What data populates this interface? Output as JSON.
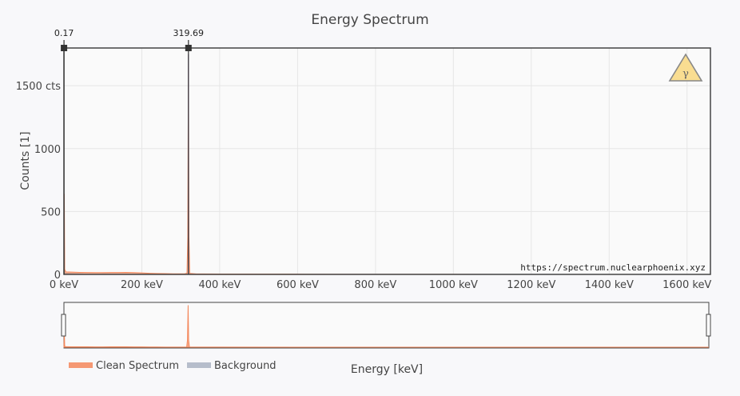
{
  "chart_data": {
    "type": "line",
    "title": "Energy Spectrum",
    "xlabel": "Energy [keV]",
    "ylabel": "Counts [1]",
    "x_unit": "keV",
    "y_unit": "cts",
    "xlim": [
      0,
      1660
    ],
    "ylim": [
      0,
      1800
    ],
    "x_ticks": [
      0,
      200,
      400,
      600,
      800,
      1000,
      1200,
      1400,
      1600
    ],
    "x_tick_labels": [
      "0 keV",
      "200 keV",
      "400 keV",
      "600 keV",
      "800 keV",
      "1000 keV",
      "1200 keV",
      "1400 keV",
      "1600 keV"
    ],
    "y_ticks": [
      0,
      500,
      1000,
      1500
    ],
    "y_tick_labels": [
      "0",
      "500",
      "1000",
      "1500 cts"
    ],
    "grid": true,
    "legend_position": "bottom-left",
    "markers": [
      {
        "energy": 0.17,
        "label": "0.17"
      },
      {
        "energy": 319.69,
        "label": "319.69"
      }
    ],
    "series": [
      {
        "name": "Clean Spectrum",
        "color": "#f4875a",
        "points": [
          [
            0,
            5
          ],
          [
            1,
            640
          ],
          [
            2,
            40
          ],
          [
            5,
            20
          ],
          [
            20,
            18
          ],
          [
            40,
            16
          ],
          [
            60,
            15
          ],
          [
            80,
            14
          ],
          [
            100,
            14
          ],
          [
            120,
            15
          ],
          [
            140,
            15
          ],
          [
            160,
            16
          ],
          [
            180,
            14
          ],
          [
            200,
            12
          ],
          [
            220,
            9
          ],
          [
            240,
            7
          ],
          [
            260,
            6
          ],
          [
            280,
            5
          ],
          [
            300,
            5
          ],
          [
            310,
            5
          ],
          [
            316,
            10
          ],
          [
            318,
            300
          ],
          [
            319.69,
            1750
          ],
          [
            321,
            300
          ],
          [
            323,
            8
          ],
          [
            340,
            4
          ],
          [
            400,
            3
          ],
          [
            600,
            2
          ],
          [
            800,
            1
          ],
          [
            1000,
            1
          ],
          [
            1200,
            0
          ],
          [
            1400,
            0
          ],
          [
            1660,
            0
          ]
        ]
      },
      {
        "name": "Background",
        "color": "#aab3c2",
        "points": [
          [
            0,
            2
          ],
          [
            1,
            300
          ],
          [
            2,
            10
          ],
          [
            50,
            5
          ],
          [
            200,
            3
          ],
          [
            319.69,
            3
          ],
          [
            600,
            1
          ],
          [
            1660,
            0
          ]
        ]
      }
    ]
  },
  "watermark": "https://spectrum.nuclearphoenix.xyz",
  "logo_symbol": "γ",
  "colors": {
    "clean": "#f4875a",
    "background_series": "#aab3c2",
    "peak_line": "#7b7fe0",
    "logo_fill": "#f9dd91",
    "plot_bg": "#fafafa"
  }
}
